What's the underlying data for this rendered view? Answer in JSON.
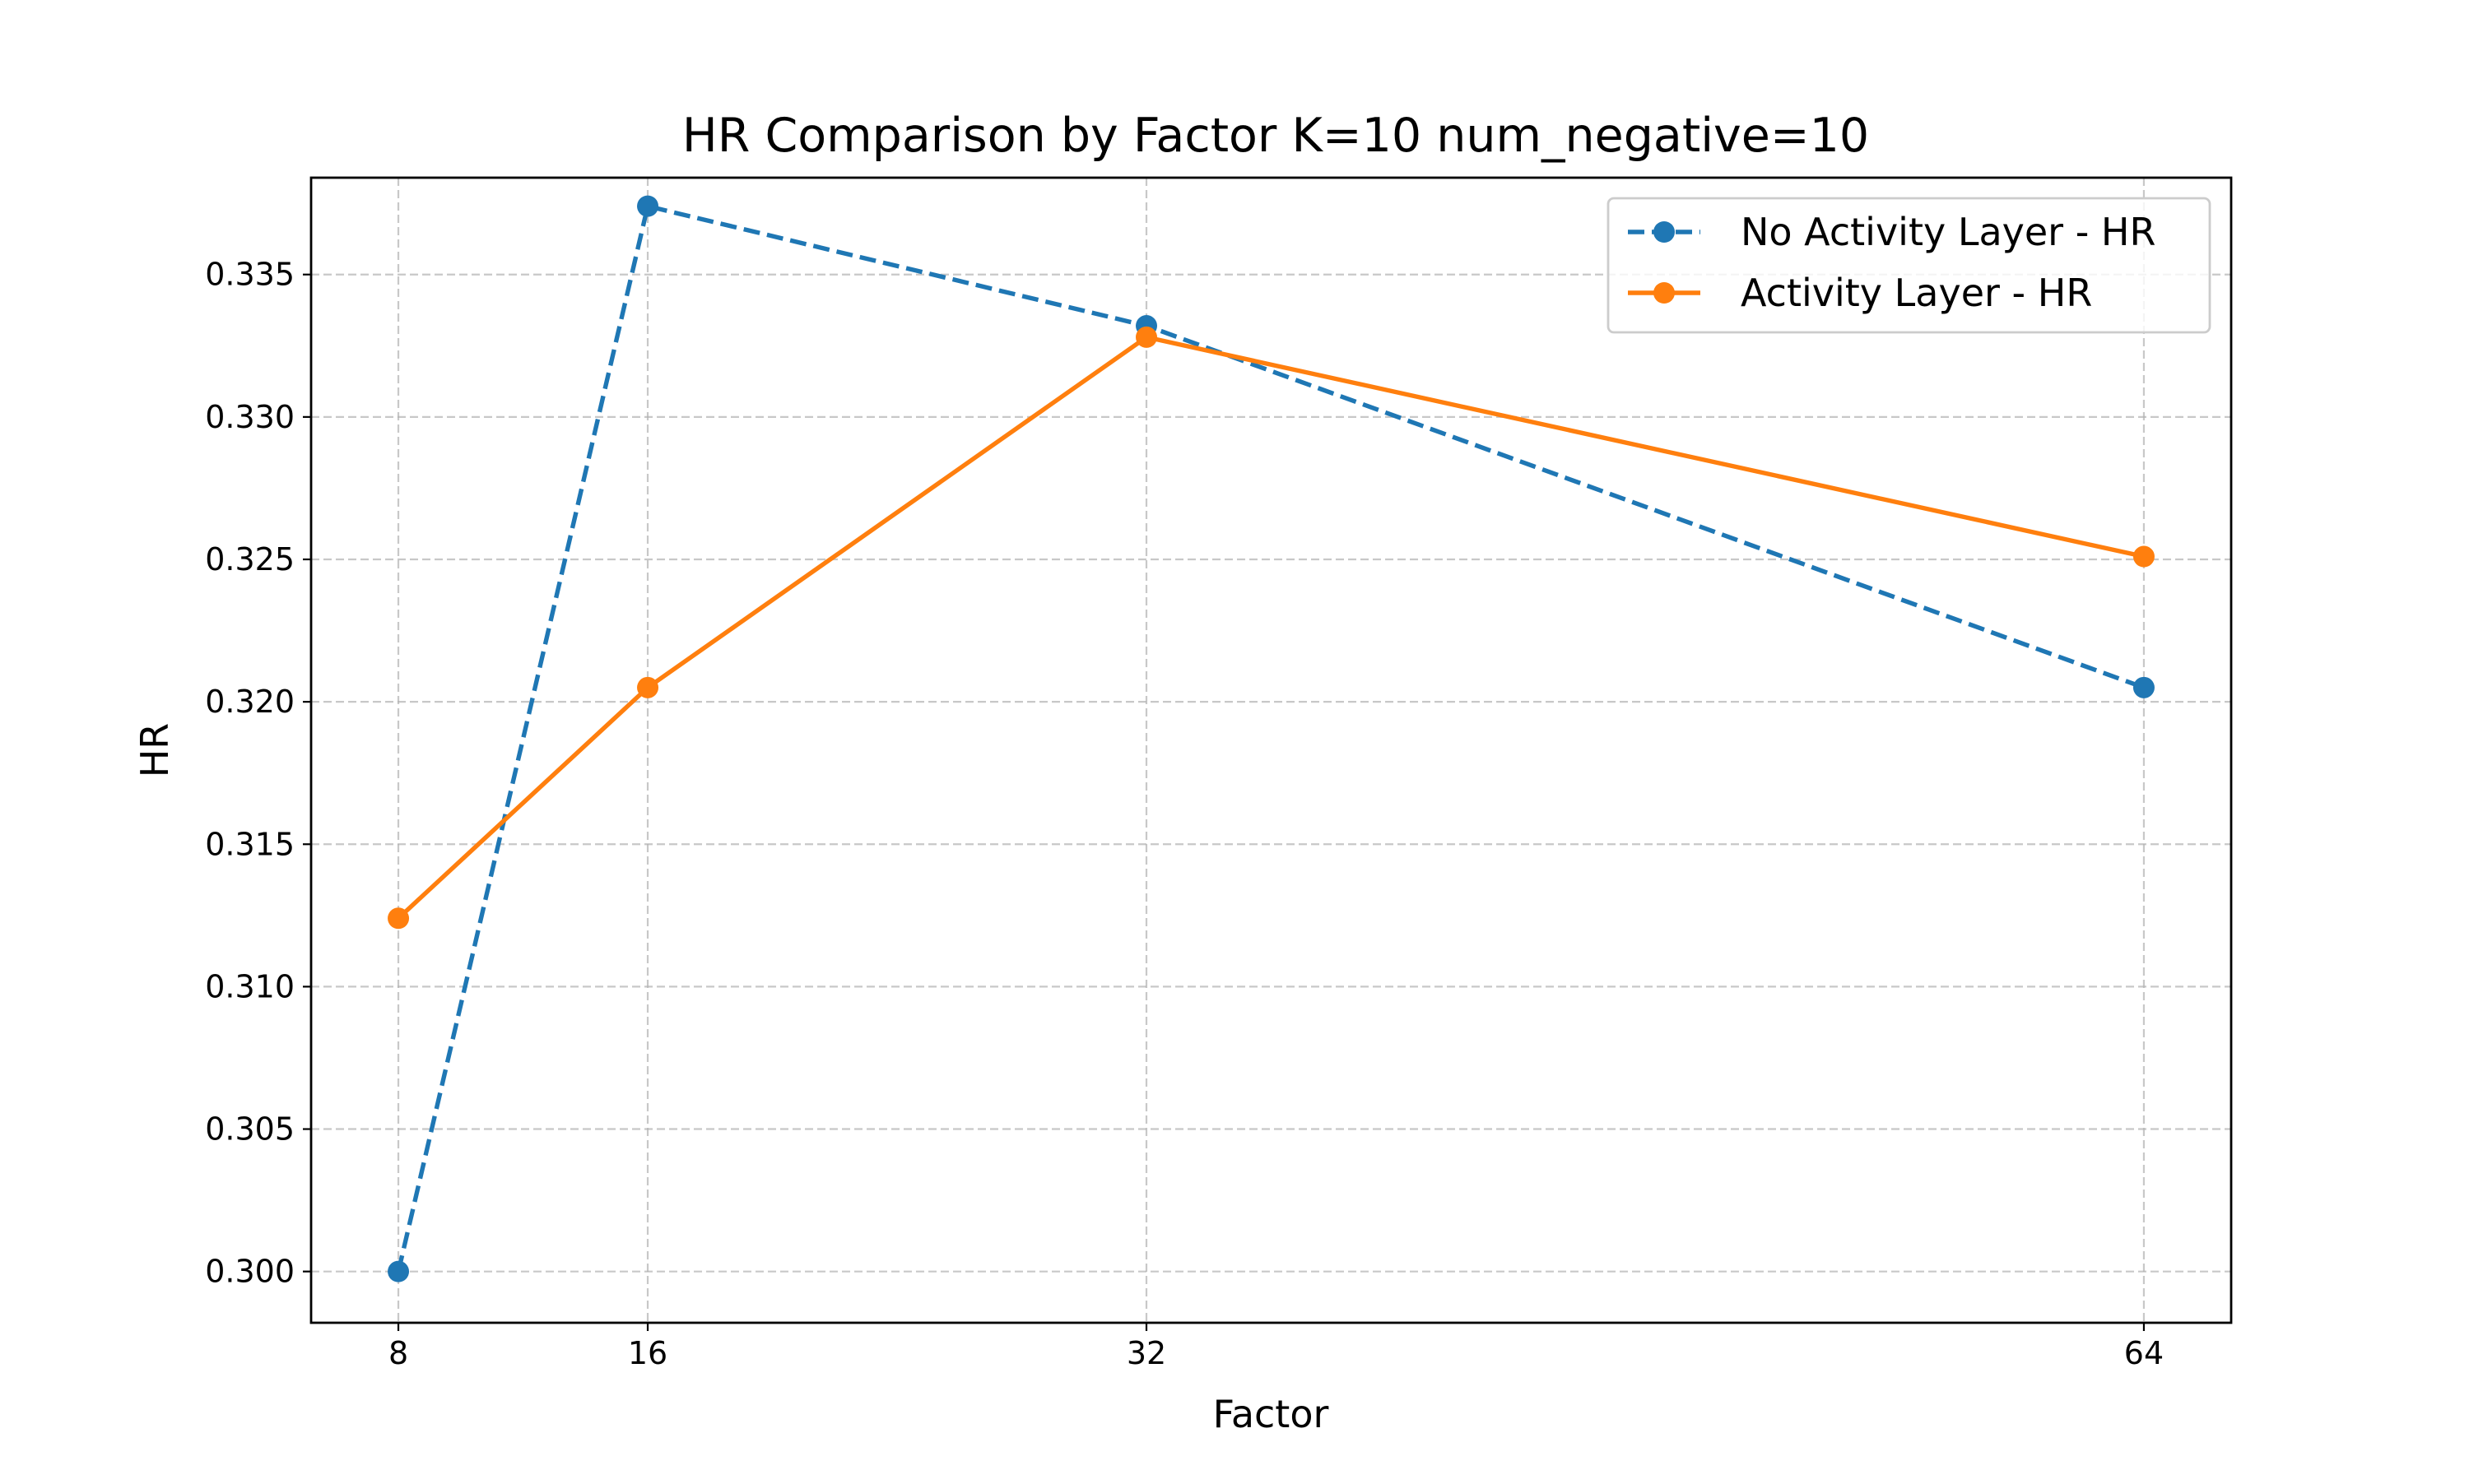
{
  "chart_data": {
    "type": "line",
    "title": "HR Comparison by Factor K=10 num_negative=10",
    "xlabel": "Factor",
    "ylabel": "HR",
    "x": [
      8,
      16,
      32,
      64
    ],
    "x_tick_labels": [
      "8",
      "16",
      "32",
      "64"
    ],
    "y_ticks": [
      0.3,
      0.305,
      0.31,
      0.315,
      0.32,
      0.325,
      0.33,
      0.335
    ],
    "y_tick_labels": [
      "0.300",
      "0.305",
      "0.310",
      "0.315",
      "0.320",
      "0.325",
      "0.330",
      "0.335"
    ],
    "xlim": [
      5.2,
      66.8
    ],
    "ylim": [
      0.2982,
      0.3384
    ],
    "grid": true,
    "legend_position": "upper right",
    "series": [
      {
        "name": "No Activity Layer - HR",
        "values": [
          0.3,
          0.3374,
          0.3332,
          0.3205
        ],
        "color": "#1f77b4",
        "line_style": "dashed",
        "marker": "circle"
      },
      {
        "name": "Activity Layer - HR",
        "values": [
          0.3124,
          0.3205,
          0.3328,
          0.3251
        ],
        "color": "#ff7f0e",
        "line_style": "solid",
        "marker": "circle"
      }
    ]
  }
}
